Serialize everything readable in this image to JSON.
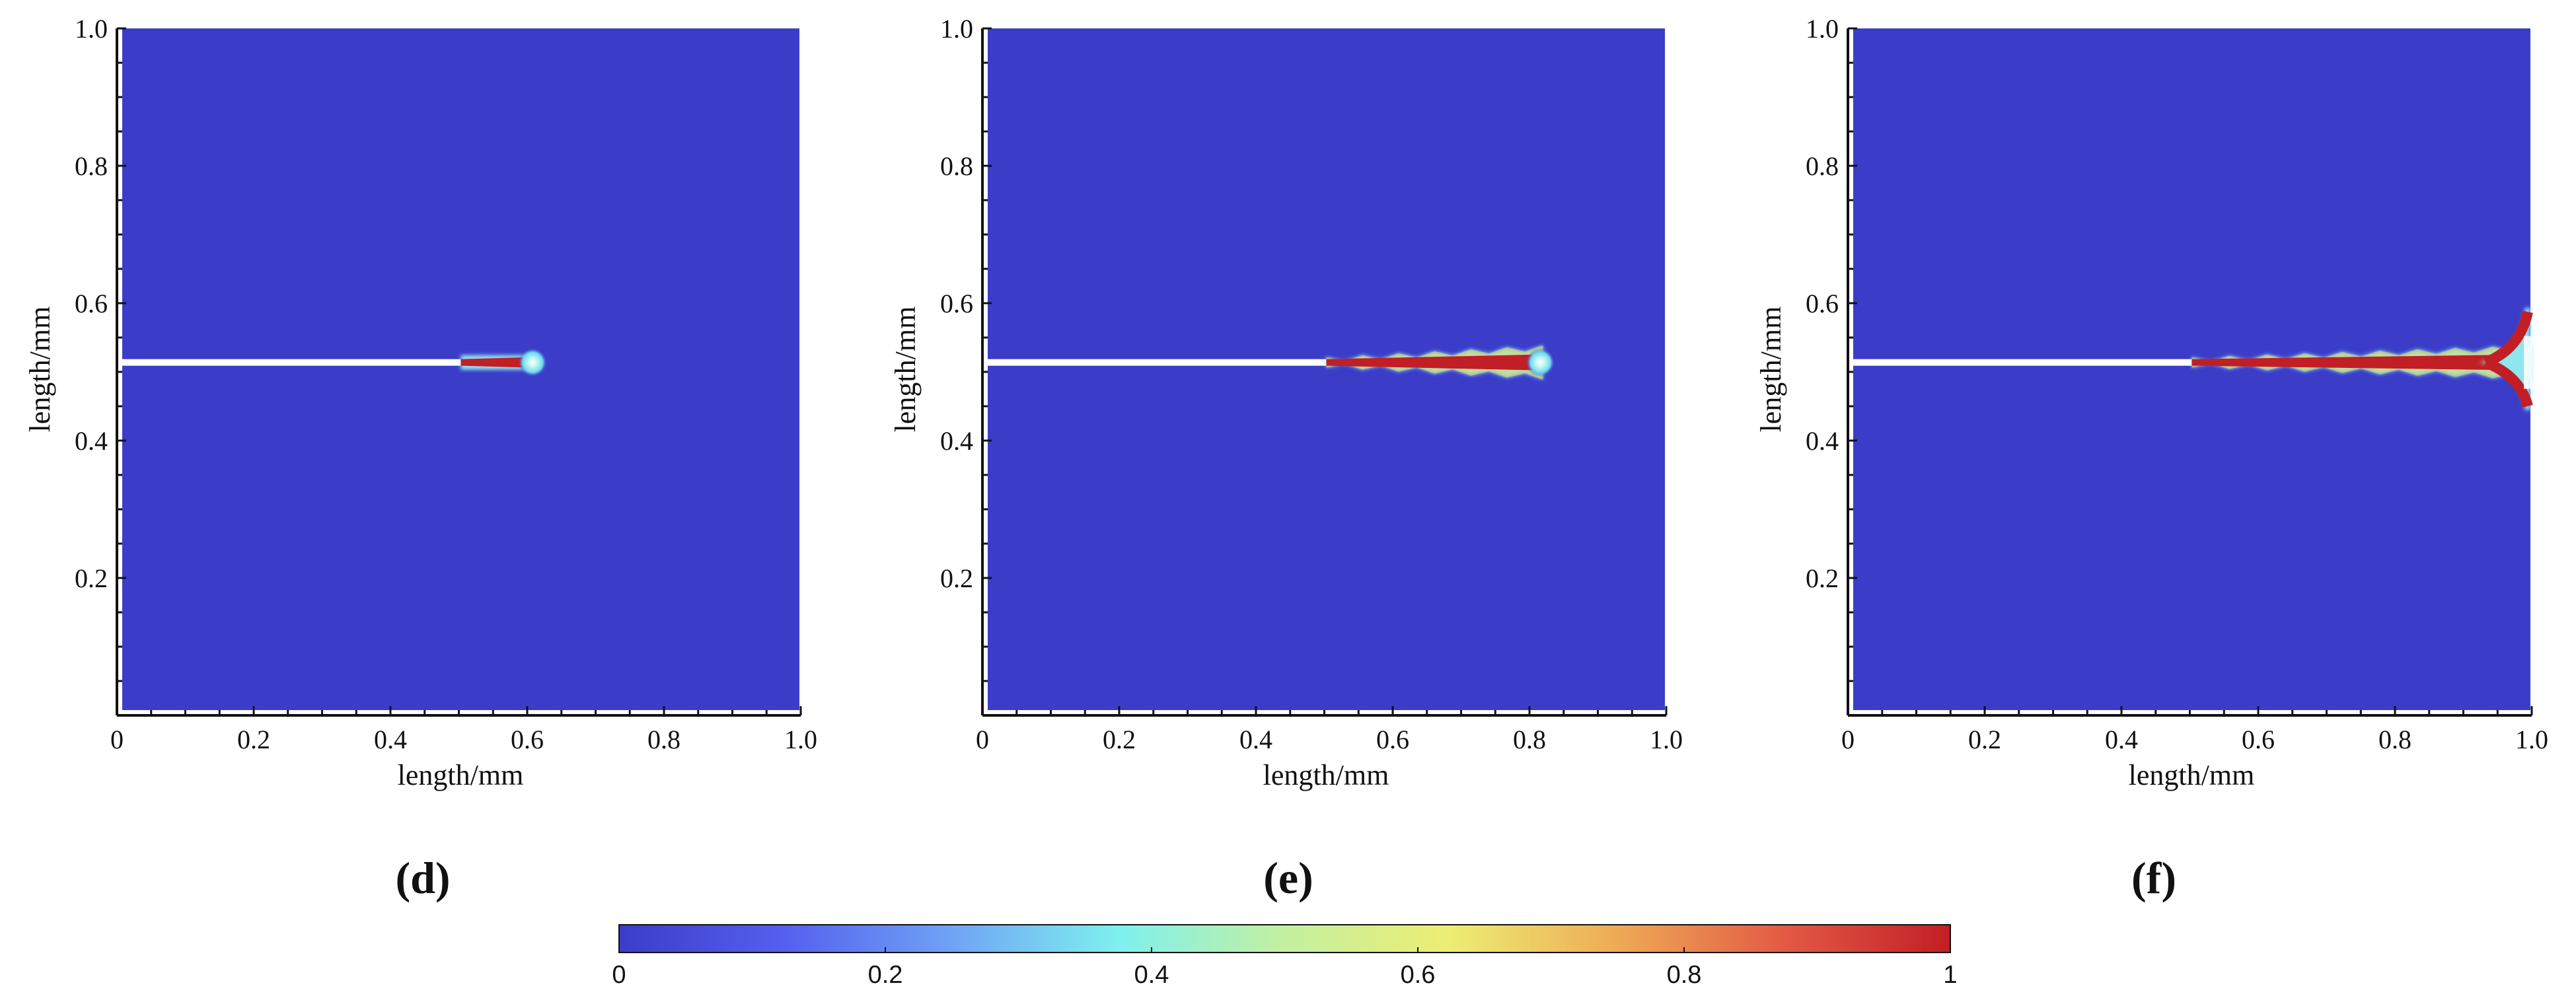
{
  "chart_data": [
    {
      "type": "heatmap",
      "panel_label": "(d)",
      "xlabel": "length/mm",
      "ylabel": "length/mm",
      "xlim": [
        0,
        1.0
      ],
      "ylim": [
        0,
        1.0
      ],
      "x_ticks": [
        "0",
        "0.2",
        "0.4",
        "0.6",
        "0.8",
        "1.0"
      ],
      "y_ticks": [
        "0.2",
        "0.4",
        "0.6",
        "0.8",
        "1.0"
      ],
      "background_value": 0,
      "initial_crack": {
        "x_start": 0.0,
        "x_end": 0.5,
        "y": 0.51
      },
      "damage_band": {
        "x_start": 0.5,
        "x_end": 0.61,
        "y": 0.51,
        "peak_value": 0.95,
        "wavy": false,
        "branching": false
      }
    },
    {
      "type": "heatmap",
      "panel_label": "(e)",
      "xlabel": "length/mm",
      "ylabel": "length/mm",
      "xlim": [
        0,
        1.0
      ],
      "ylim": [
        0,
        1.0
      ],
      "x_ticks": [
        "0",
        "0.2",
        "0.4",
        "0.6",
        "0.8",
        "1.0"
      ],
      "y_ticks": [
        "0.2",
        "0.4",
        "0.6",
        "0.8",
        "1.0"
      ],
      "background_value": 0,
      "initial_crack": {
        "x_start": 0.0,
        "x_end": 0.5,
        "y": 0.51
      },
      "damage_band": {
        "x_start": 0.5,
        "x_end": 0.82,
        "y": 0.51,
        "peak_value": 0.95,
        "wavy": true,
        "branching": false
      }
    },
    {
      "type": "heatmap",
      "panel_label": "(f)",
      "xlabel": "length/mm",
      "ylabel": "length/mm",
      "xlim": [
        0,
        1.0
      ],
      "ylim": [
        0,
        1.0
      ],
      "x_ticks": [
        "0",
        "0.2",
        "0.4",
        "0.6",
        "0.8",
        "1.0"
      ],
      "y_ticks": [
        "0.2",
        "0.4",
        "0.6",
        "0.8",
        "1.0"
      ],
      "background_value": 0,
      "initial_crack": {
        "x_start": 0.0,
        "x_end": 0.5,
        "y": 0.51
      },
      "damage_band": {
        "x_start": 0.5,
        "x_end": 1.0,
        "y": 0.51,
        "peak_value": 0.95,
        "wavy": true,
        "branching": true,
        "branch_y_range": [
          0.44,
          0.59
        ]
      }
    }
  ],
  "colorbar": {
    "min": 0,
    "max": 1,
    "tick_labels": [
      "0",
      "0.2",
      "0.4",
      "0.6",
      "0.8",
      "1"
    ],
    "colormap": "jet",
    "colors": [
      "#3b3dc8",
      "#5560ee",
      "#6fa3f5",
      "#7ef0ef",
      "#c4f0a0",
      "#eded73",
      "#eeaa55",
      "#e35a45",
      "#c11f25"
    ]
  }
}
